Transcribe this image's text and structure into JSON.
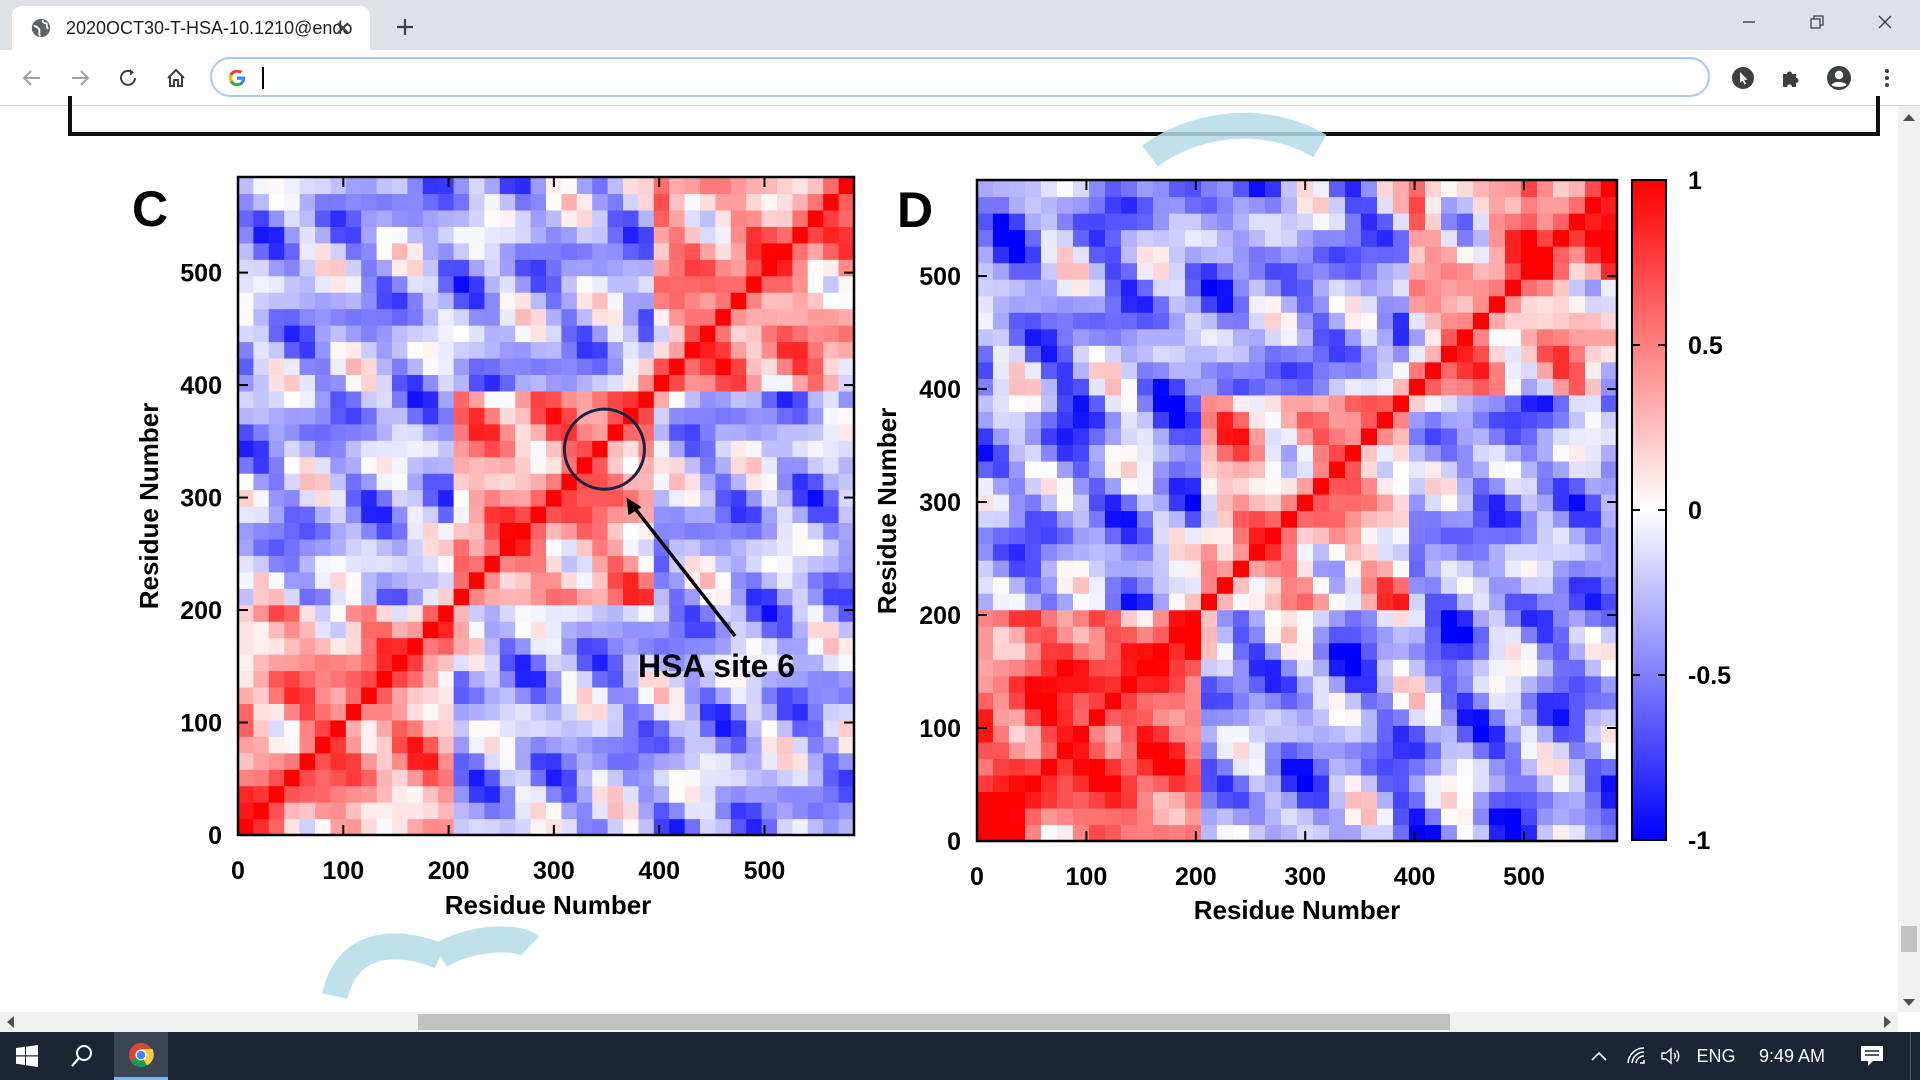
{
  "browser": {
    "tab_title": "2020OCT30-T-HSA-10.1210@endo",
    "address_value": "",
    "accent": "#a8c7fa"
  },
  "figure": {
    "panel_c": {
      "label": "C",
      "annotation": "HSA site 6"
    },
    "panel_d": {
      "label": "D"
    }
  },
  "chart_data": [
    {
      "type": "heatmap",
      "panel": "C",
      "title": "",
      "xlabel": "Residue Number",
      "ylabel": "Residue Number",
      "xlim": [
        0,
        585
      ],
      "ylim": [
        0,
        585
      ],
      "xticks": [
        0,
        100,
        200,
        300,
        400,
        500
      ],
      "yticks": [
        0,
        100,
        200,
        300,
        400,
        500
      ],
      "colorscale": {
        "min": -1,
        "max": 1,
        "low": "#0000ff",
        "mid": "#ffffff",
        "high": "#ff0000"
      },
      "diagonal_value": 1,
      "annotation": {
        "text": "HSA site 6",
        "center": [
          348,
          343
        ],
        "radius": 38
      }
    },
    {
      "type": "heatmap",
      "panel": "D",
      "title": "",
      "xlabel": "Residue Number",
      "ylabel": "Residue Number",
      "xlim": [
        0,
        585
      ],
      "ylim": [
        0,
        585
      ],
      "xticks": [
        0,
        100,
        200,
        300,
        400,
        500
      ],
      "yticks": [
        0,
        100,
        200,
        300,
        400,
        500
      ],
      "colorscale": {
        "min": -1,
        "max": 1,
        "low": "#0000ff",
        "mid": "#ffffff",
        "high": "#ff0000"
      },
      "colorbar_ticks": [
        1,
        0.5,
        0,
        -0.5,
        -1
      ],
      "colorbar_labels": [
        "1",
        "0.5",
        "0",
        "-0.5",
        "-1"
      ],
      "diagonal_value": 1
    }
  ],
  "taskbar": {
    "language": "ENG",
    "time": "9:49 AM"
  }
}
